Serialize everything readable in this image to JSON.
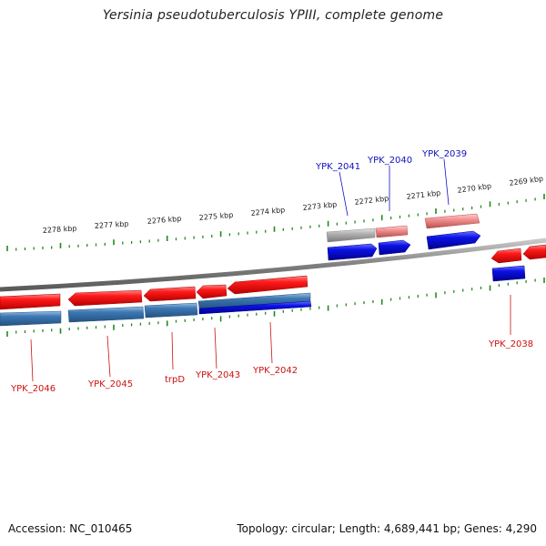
{
  "title": "Yersinia pseudotuberculosis YPIII, complete genome",
  "footer": {
    "accession": "Accession: NC_010465",
    "summary": "Topology: circular; Length: 4,689,441 bp; Genes: 4,290"
  },
  "colors": {
    "backbone": "#7f7f7f",
    "tick": "#1f8a1f",
    "forward_gene": "#ff1a1a",
    "forward_cds": "#3d78b5",
    "reverse_gene": "#0b12e6",
    "pseudo_gene": "#f28f8f",
    "grey_gene": "#b0b0b0",
    "label_top": "#1010c0",
    "label_bottom": "#cc1010"
  },
  "scale_labels": [
    "2278 kbp",
    "2277 kbp",
    "2276 kbp",
    "2275 kbp",
    "2274 kbp",
    "2273 kbp",
    "2272 kbp",
    "2271 kbp",
    "2270 kbp",
    "2269 kbp"
  ],
  "gene_labels_top": [
    "YPK_2041",
    "YPK_2040",
    "YPK_2039"
  ],
  "gene_labels_bottom": [
    "YPK_2046",
    "YPK_2045",
    "trpD",
    "YPK_2043",
    "YPK_2042",
    "YPK_2038"
  ]
}
